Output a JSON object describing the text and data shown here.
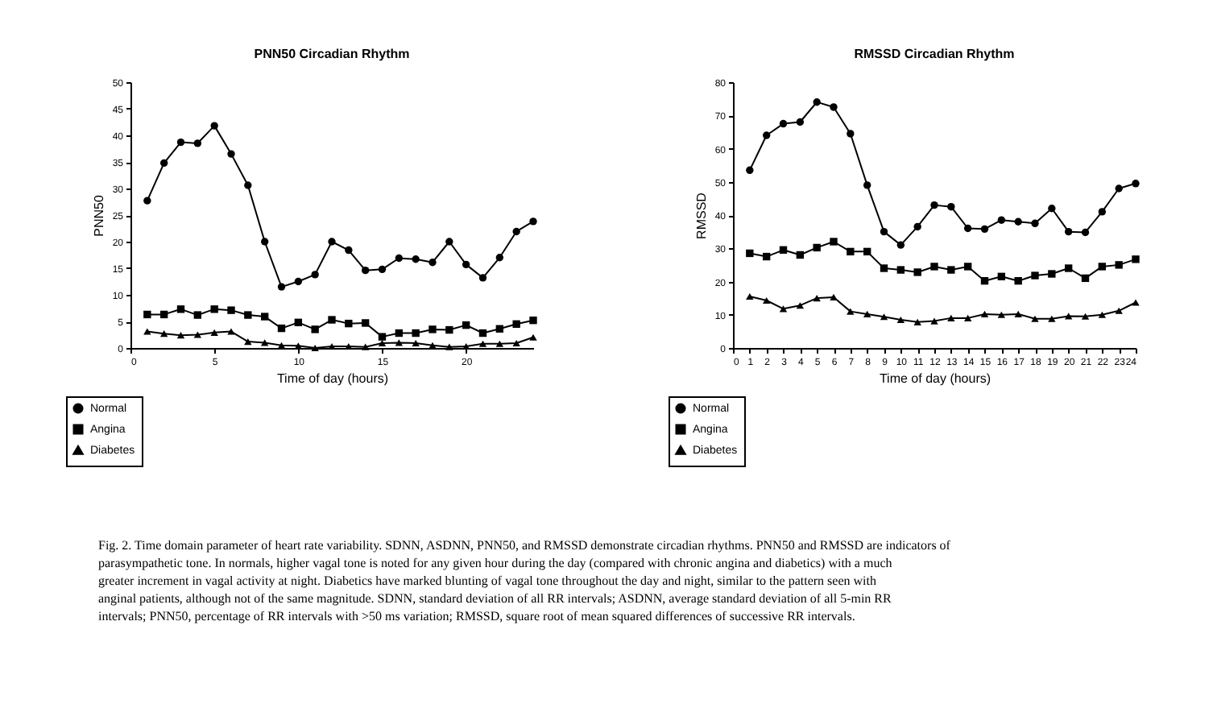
{
  "chart_data": [
    {
      "type": "line",
      "title": "PNN50 Circadian Rhythm",
      "xlabel": "Time of day (hours)",
      "ylabel": "PNN50",
      "x": [
        1,
        2,
        3,
        4,
        5,
        6,
        7,
        8,
        9,
        10,
        11,
        12,
        13,
        14,
        15,
        16,
        17,
        18,
        19,
        20,
        21,
        22,
        23,
        24
      ],
      "xlim": [
        0,
        24
      ],
      "xticks": [
        0,
        5,
        10,
        15,
        20
      ],
      "ylim": [
        0,
        50
      ],
      "yticks": [
        0,
        5,
        10,
        15,
        20,
        25,
        30,
        35,
        40,
        45,
        50
      ],
      "grid": false,
      "legend": "bottom left",
      "series": [
        {
          "name": "Normal",
          "color": "#000000",
          "marker": "circle",
          "values": [
            27.7,
            34.8,
            38.7,
            38.5,
            41.8,
            36.5,
            30.6,
            20,
            11.5,
            12.5,
            13.8,
            20,
            18.4,
            14.6,
            14.8,
            16.9,
            16.7,
            16.1,
            20,
            15.7,
            13.2,
            17,
            21.9,
            23.8
          ]
        },
        {
          "name": "Angina",
          "color": "#000000",
          "marker": "square",
          "values": [
            6.3,
            6.3,
            7.3,
            6.2,
            7.3,
            7.1,
            6.2,
            5.9,
            3.7,
            4.8,
            3.5,
            5.3,
            4.6,
            4.7,
            2.1,
            2.8,
            2.8,
            3.5,
            3.4,
            4.3,
            2.8,
            3.6,
            4.5,
            5.2
          ]
        },
        {
          "name": "Diabetes",
          "color": "#000000",
          "marker": "triangle",
          "values": [
            3.1,
            2.7,
            2.4,
            2.5,
            2.9,
            3.1,
            1.2,
            1,
            0.5,
            0.4,
            0,
            0.3,
            0.3,
            0.2,
            0.9,
            1,
            0.9,
            0.5,
            0.2,
            0.3,
            0.8,
            0.8,
            0.9,
            2.0
          ]
        }
      ]
    },
    {
      "type": "line",
      "title": "RMSSD Circadian Rhythm",
      "xlabel": "Time of day (hours)",
      "ylabel": "RMSSD",
      "x": [
        1,
        2,
        3,
        4,
        5,
        6,
        7,
        8,
        9,
        10,
        11,
        12,
        13,
        14,
        15,
        16,
        17,
        18,
        19,
        20,
        21,
        22,
        23,
        24
      ],
      "xlim": [
        0,
        24
      ],
      "xticks": [
        0,
        1,
        2,
        3,
        4,
        5,
        6,
        7,
        8,
        9,
        10,
        11,
        12,
        13,
        14,
        15,
        16,
        17,
        18,
        19,
        20,
        21,
        22,
        23,
        24
      ],
      "ylim": [
        0,
        80
      ],
      "yticks": [
        0,
        10,
        20,
        30,
        40,
        50,
        60,
        70,
        80
      ],
      "grid": false,
      "legend": "bottom left",
      "annotations": [
        "Fig. 2. Time domain parameter of heart rate variability. SDNN, ASDNN, PNN50, and RMSSD demonstrate circadian rhythms. PNN50 and RMSSD are indicators of parasympathetic tone. In normals, higher vagal tone is noted for any given hour during the day (compared with chronic angina and diabetics) with a much greater increment in vagal activity at night. Diabetics have marked blunting of vagal tone throughout the day and night, similar to the pattern seen with anginal patients, although not of the same magnitude. SDNN, standard deviation of all RR intervals; ASDNN, average standard deviation of all 5-min RR intervals; PNN50, percentage of RR intervals with >50 ms variation; RMSSD, square root of mean squared differences of successive RR intervals."
      ],
      "series": [
        {
          "name": "Normal",
          "color": "#000000",
          "marker": "circle",
          "values": [
            53.5,
            64,
            67.5,
            68,
            74,
            72.5,
            64.5,
            49,
            35,
            31,
            36.5,
            43,
            42.5,
            36,
            35.8,
            38.5,
            38,
            37.5,
            42,
            35,
            34.8,
            41,
            48,
            49.5
          ]
        },
        {
          "name": "Angina",
          "color": "#000000",
          "marker": "square",
          "values": [
            28.5,
            27.5,
            29.5,
            28,
            30.2,
            32,
            29,
            29,
            24,
            23.5,
            22.8,
            24.5,
            23.5,
            24.5,
            20.2,
            21.5,
            20.2,
            21.8,
            22.3,
            24,
            21,
            24.5,
            25,
            26.7
          ]
        },
        {
          "name": "Diabetes",
          "color": "#000000",
          "marker": "triangle",
          "values": [
            15.5,
            14.3,
            11.8,
            12.8,
            15,
            15.3,
            11,
            10.2,
            9.4,
            8.5,
            7.8,
            8.1,
            9,
            9,
            10.2,
            10,
            10.2,
            8.8,
            8.8,
            9.6,
            9.5,
            10,
            11.2,
            13.7
          ]
        }
      ]
    }
  ]
}
